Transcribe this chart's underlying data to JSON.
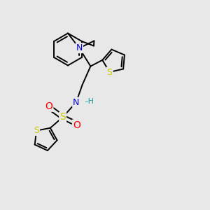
{
  "bg_color": "#e8e8e8",
  "bond_color": "#000000",
  "bond_width": 1.4,
  "atom_colors": {
    "N": "#0000cc",
    "S": "#cccc00",
    "O": "#ff0000",
    "C": "#000000",
    "H": "#20a0a0"
  }
}
